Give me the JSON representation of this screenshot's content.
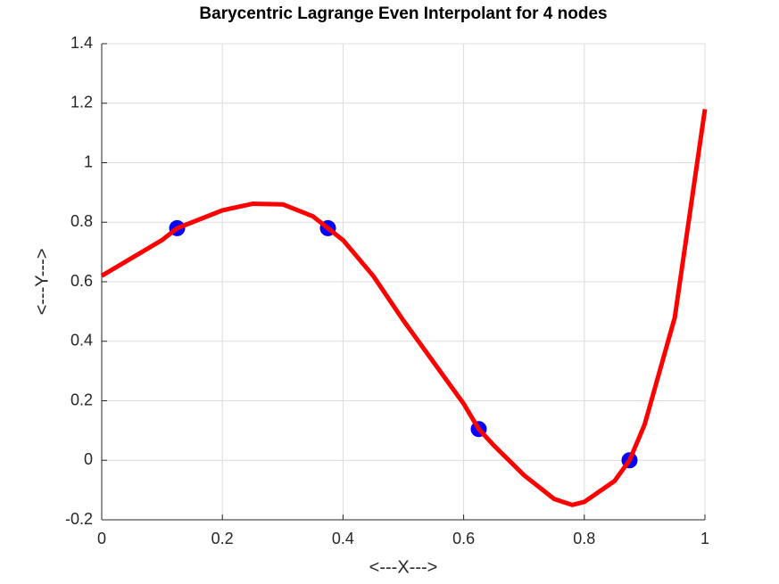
{
  "chart_data": {
    "type": "line",
    "title": "Barycentric Lagrange Even Interpolant for 4 nodes",
    "xlabel": "<---X--->",
    "ylabel": "<---Y--->",
    "xlim": [
      0,
      1
    ],
    "ylim": [
      -0.2,
      1.4
    ],
    "xticks": [
      0,
      0.2,
      0.4,
      0.6,
      0.8,
      1
    ],
    "yticks": [
      -0.2,
      0,
      0.2,
      0.4,
      0.6,
      0.8,
      1,
      1.2,
      1.4
    ],
    "grid": true,
    "series": [
      {
        "type": "line",
        "color": "#ff0000",
        "x": [
          0,
          0.05,
          0.1,
          0.125,
          0.15,
          0.2,
          0.25,
          0.3,
          0.35,
          0.375,
          0.4,
          0.45,
          0.5,
          0.55,
          0.6,
          0.625,
          0.65,
          0.7,
          0.75,
          0.78,
          0.8,
          0.85,
          0.875,
          0.9,
          0.95,
          1
        ],
        "values": [
          0.62,
          0.68,
          0.74,
          0.78,
          0.8,
          0.84,
          0.862,
          0.86,
          0.82,
          0.78,
          0.74,
          0.62,
          0.47,
          0.33,
          0.19,
          0.105,
          0.05,
          -0.05,
          -0.13,
          -0.15,
          -0.14,
          -0.07,
          0.0,
          0.12,
          0.48,
          1.18
        ]
      },
      {
        "type": "scatter",
        "color": "#0000ff",
        "x": [
          0.125,
          0.375,
          0.625,
          0.875
        ],
        "values": [
          0.78,
          0.78,
          0.105,
          0.0
        ]
      }
    ]
  }
}
